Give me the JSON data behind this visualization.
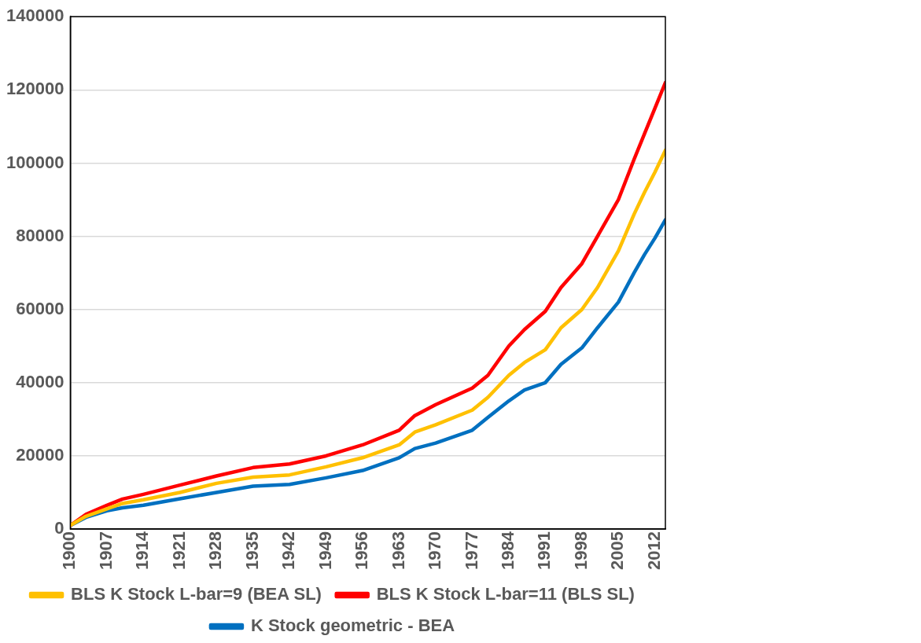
{
  "chart_data": {
    "type": "line",
    "x": [
      1900,
      1903,
      1907,
      1910,
      1914,
      1921,
      1928,
      1935,
      1942,
      1949,
      1956,
      1963,
      1966,
      1970,
      1977,
      1980,
      1984,
      1987,
      1991,
      1994,
      1998,
      2001,
      2005,
      2008,
      2010,
      2012,
      2014
    ],
    "xlim": [
      1900,
      2014
    ],
    "xticks": [
      1900,
      1907,
      1914,
      1921,
      1928,
      1935,
      1942,
      1949,
      1956,
      1963,
      1970,
      1977,
      1984,
      1991,
      1998,
      2005,
      2012
    ],
    "ylim": [
      0,
      140000
    ],
    "yticks": [
      0,
      20000,
      40000,
      60000,
      80000,
      100000,
      120000,
      140000
    ],
    "grid": "y",
    "legend": "bottom",
    "marker": "none",
    "line_style": "solid",
    "series": [
      {
        "name": "BLS K Stock L-bar=9 (BEA SL)",
        "color": "#ffc000",
        "values": [
          1000,
          3500,
          5500,
          7000,
          8000,
          10000,
          12500,
          14200,
          14800,
          17000,
          19500,
          23000,
          26500,
          28500,
          32500,
          36000,
          42000,
          45500,
          49000,
          55000,
          60000,
          66000,
          76000,
          86000,
          92000,
          97500,
          103500
        ]
      },
      {
        "name": "BLS K Stock L-bar=11 (BLS SL)",
        "color": "#ff0000",
        "values": [
          1000,
          4000,
          6500,
          8200,
          9500,
          12000,
          14500,
          16800,
          17800,
          20000,
          23000,
          27000,
          31000,
          34000,
          38500,
          42000,
          50000,
          54500,
          59500,
          66000,
          72500,
          80000,
          90000,
          101000,
          108000,
          115000,
          122000
        ]
      },
      {
        "name": "K Stock geometric - BEA",
        "color": "#0070c0",
        "values": [
          1000,
          3200,
          5000,
          5800,
          6500,
          8300,
          10000,
          11700,
          12200,
          14000,
          16000,
          19500,
          22000,
          23500,
          27000,
          30500,
          35000,
          38000,
          40000,
          45000,
          49500,
          55000,
          62000,
          70000,
          75000,
          79500,
          84500
        ]
      }
    ]
  }
}
